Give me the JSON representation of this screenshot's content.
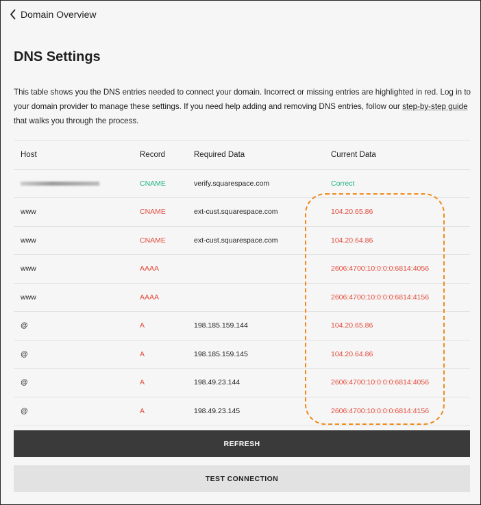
{
  "nav": {
    "back_label": "Domain Overview"
  },
  "page_title": "DNS Settings",
  "description": {
    "text_before": "This table shows you the DNS entries needed to connect your domain. Incorrect or missing entries are highlighted in red. Log in to your domain provider to manage these settings. If you need help adding and removing DNS entries, follow our ",
    "link": "step-by-step guide",
    "text_after": " that walks you through the process."
  },
  "table": {
    "headers": [
      "Host",
      "Record",
      "Required Data",
      "Current Data"
    ],
    "rows": [
      {
        "host": "",
        "host_redacted": true,
        "record": "CNAME",
        "required": "verify.squarespace.com",
        "current": "Correct",
        "status": "ok"
      },
      {
        "host": "www",
        "record": "CNAME",
        "required": "ext-cust.squarespace.com",
        "current": "104.20.65.86",
        "status": "bad"
      },
      {
        "host": "www",
        "record": "CNAME",
        "required": "ext-cust.squarespace.com",
        "current": "104.20.64.86",
        "status": "bad"
      },
      {
        "host": "www",
        "record": "AAAA",
        "required": "",
        "current": "2606:4700:10:0:0:0:6814:4056",
        "status": "bad"
      },
      {
        "host": "www",
        "record": "AAAA",
        "required": "",
        "current": "2606:4700:10:0:0:0:6814:4156",
        "status": "bad"
      },
      {
        "host": "@",
        "record": "A",
        "required": "198.185.159.144",
        "current": "104.20.65.86",
        "status": "bad"
      },
      {
        "host": "@",
        "record": "A",
        "required": "198.185.159.145",
        "current": "104.20.64.86",
        "status": "bad"
      },
      {
        "host": "@",
        "record": "A",
        "required": "198.49.23.144",
        "current": "2606:4700:10:0:0:0:6814:4056",
        "status": "bad"
      },
      {
        "host": "@",
        "record": "A",
        "required": "198.49.23.145",
        "current": "2606:4700:10:0:0:0:6814:4156",
        "status": "bad"
      }
    ]
  },
  "buttons": {
    "refresh": "REFRESH",
    "test_connection": "TEST CONNECTION"
  },
  "colors": {
    "correct": "#1eb37f",
    "incorrect": "#e04a3a",
    "highlight": "#f08a1c"
  }
}
